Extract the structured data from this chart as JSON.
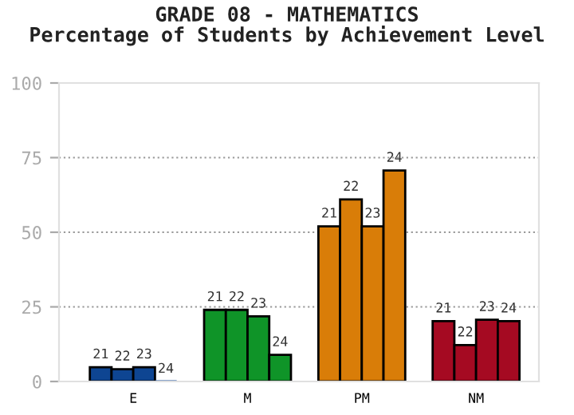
{
  "chart_data": {
    "type": "bar",
    "title": "GRADE 08 - MATHEMATICS\nPercentage of Students by Achievement Level",
    "categories": [
      "E",
      "M",
      "PM",
      "NM"
    ],
    "series": [
      {
        "name": "21",
        "colors": [
          "#0e4592",
          "#0f9428",
          "#d97d08",
          "#a50a22"
        ],
        "values": [
          4.8,
          24,
          52,
          20.2
        ]
      },
      {
        "name": "22",
        "colors": [
          "#0e4592",
          "#0f9428",
          "#d97d08",
          "#a50a22"
        ],
        "values": [
          4.1,
          24,
          61,
          12.2
        ]
      },
      {
        "name": "23",
        "colors": [
          "#0e4592",
          "#0f9428",
          "#d97d08",
          "#a50a22"
        ],
        "values": [
          4.8,
          21.8,
          52,
          20.7
        ]
      },
      {
        "name": "24",
        "colors": [
          "#0e4592",
          "#0f9428",
          "#d97d08",
          "#a50a22"
        ],
        "values": [
          0,
          8.9,
          70.7,
          20.2
        ]
      }
    ],
    "ylim": [
      0,
      100
    ],
    "yticks": [
      0,
      25,
      50,
      75,
      100
    ],
    "grid": "y",
    "legend": false
  }
}
